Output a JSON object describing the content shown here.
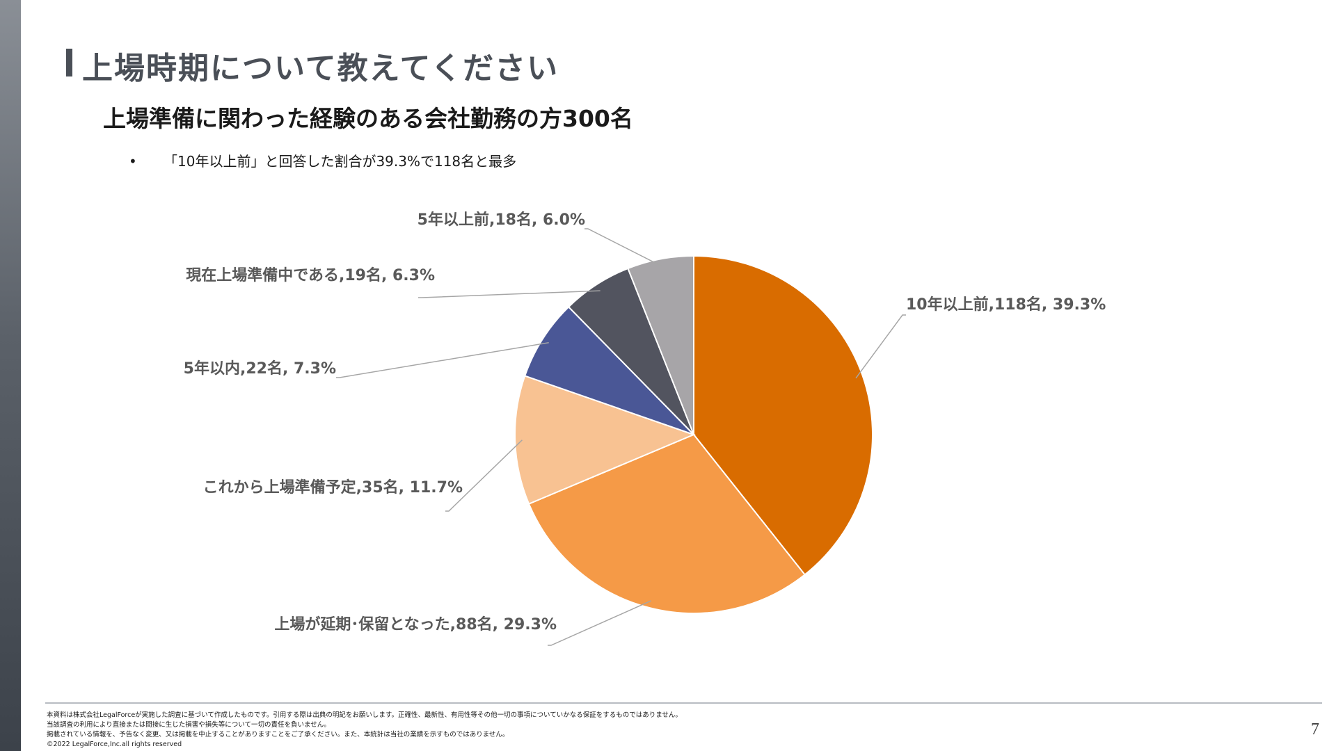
{
  "slide": {
    "title": "上場時期について教えてください",
    "subtitle": "上場準備に関わった経験のある会社勤務の方300名",
    "bullet": "「10年以上前」と回答した割合が39.3%で118名と最多",
    "page_number": "7"
  },
  "footer": {
    "notes": [
      "本資料は株式会社LegalForceが実施した調査に基づいて作成したものです。引用する際は出典の明記をお願いします。正確性、最新性、有用性等その他一切の事項についていかなる保証をするものではありません。",
      "当該調査の利用により直接または間接に生じた損害や損失等について一切の責任を負いません。",
      "掲載されている情報を、予告なく変更、又は掲載を中止することがありますことをご了承ください。また、本統計は当社の業績を示すものではありません。",
      "©2022 LegalForce,Inc.all rights reserved"
    ]
  },
  "chart_data": {
    "type": "pie",
    "start_angle_deg": 0,
    "direction": "clockwise",
    "slices": [
      {
        "label": "10年以上前",
        "value": 118,
        "percent": "39.3%",
        "display": "10年以上前,118名, 39.3%",
        "color": "#d96c00"
      },
      {
        "label": "上場が延期・保留となった",
        "value": 88,
        "percent": "29.3%",
        "display": "上場が延期･保留となった,88名, 29.3%",
        "color": "#f59a47"
      },
      {
        "label": "これから上場準備予定",
        "value": 35,
        "percent": "11.7%",
        "display": "これから上場準備予定,35名, 11.7%",
        "color": "#f8c292"
      },
      {
        "label": "5年以内",
        "value": 22,
        "percent": "7.3%",
        "display": "5年以内,22名, 7.3%",
        "color": "#4a5796"
      },
      {
        "label": "現在上場準備中である",
        "value": 19,
        "percent": "6.3%",
        "display": "現在上場準備中である,19名, 6.3%",
        "color": "#52545f"
      },
      {
        "label": "5年以上前",
        "value": 18,
        "percent": "6.0%",
        "display": "5年以上前,18名, 6.0%",
        "color": "#a7a5a8"
      }
    ]
  }
}
